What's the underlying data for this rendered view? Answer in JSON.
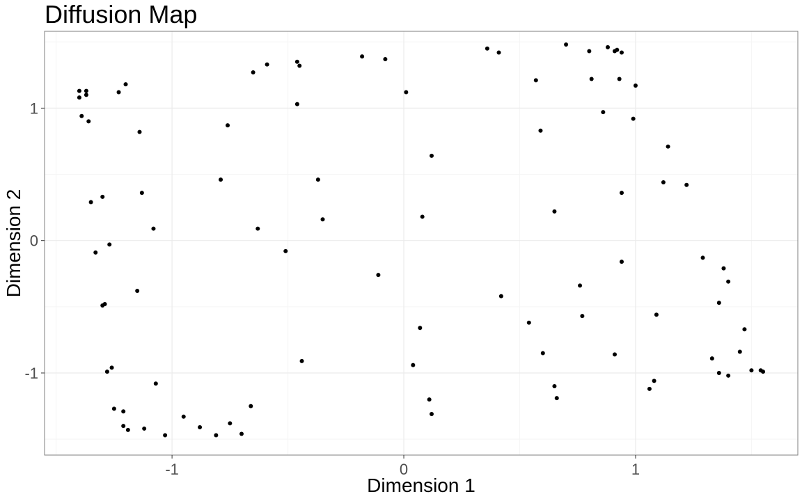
{
  "chart_data": {
    "type": "scatter",
    "title": "Diffusion Map",
    "xlabel": "Dimension 1",
    "ylabel": "Dimension 2",
    "xlim": [
      -1.55,
      1.7
    ],
    "ylim": [
      -1.62,
      1.58
    ],
    "xticks": [
      -1,
      0,
      1
    ],
    "yticks": [
      -1,
      0,
      1
    ],
    "xtick_labels": [
      "-1",
      "0",
      "1"
    ],
    "ytick_labels": [
      "-1",
      "0",
      "1"
    ],
    "grid": true,
    "colors": {
      "point": "#000000",
      "grid_major": "#ebebeb",
      "grid_minor": "#f5f5f5",
      "panel_border": "#7f7f7f"
    },
    "points": [
      {
        "x": -1.4,
        "y": 1.13
      },
      {
        "x": -1.37,
        "y": 1.13
      },
      {
        "x": -1.4,
        "y": 1.08
      },
      {
        "x": -1.37,
        "y": 1.1
      },
      {
        "x": -1.39,
        "y": 0.94
      },
      {
        "x": -1.36,
        "y": 0.9
      },
      {
        "x": -1.2,
        "y": 1.18
      },
      {
        "x": -1.23,
        "y": 1.12
      },
      {
        "x": -1.14,
        "y": 0.82
      },
      {
        "x": -1.35,
        "y": 0.29
      },
      {
        "x": -1.3,
        "y": 0.33
      },
      {
        "x": -1.13,
        "y": 0.36
      },
      {
        "x": -1.08,
        "y": 0.09
      },
      {
        "x": -1.27,
        "y": -0.03
      },
      {
        "x": -1.33,
        "y": -0.09
      },
      {
        "x": -1.15,
        "y": -0.38
      },
      {
        "x": -1.3,
        "y": -0.49
      },
      {
        "x": -1.29,
        "y": -0.48
      },
      {
        "x": -1.26,
        "y": -0.96
      },
      {
        "x": -1.28,
        "y": -0.99
      },
      {
        "x": -1.07,
        "y": -1.08
      },
      {
        "x": -1.25,
        "y": -1.27
      },
      {
        "x": -1.21,
        "y": -1.29
      },
      {
        "x": -1.21,
        "y": -1.4
      },
      {
        "x": -1.19,
        "y": -1.43
      },
      {
        "x": -1.12,
        "y": -1.42
      },
      {
        "x": -1.03,
        "y": -1.47
      },
      {
        "x": -0.95,
        "y": -1.33
      },
      {
        "x": -0.88,
        "y": -1.41
      },
      {
        "x": -0.81,
        "y": -1.47
      },
      {
        "x": -0.75,
        "y": -1.38
      },
      {
        "x": -0.7,
        "y": -1.46
      },
      {
        "x": -0.66,
        "y": -1.25
      },
      {
        "x": -0.65,
        "y": 1.27
      },
      {
        "x": -0.59,
        "y": 1.33
      },
      {
        "x": -0.76,
        "y": 0.87
      },
      {
        "x": -0.79,
        "y": 0.46
      },
      {
        "x": -0.63,
        "y": 0.09
      },
      {
        "x": -0.51,
        "y": -0.08
      },
      {
        "x": -0.46,
        "y": 1.35
      },
      {
        "x": -0.45,
        "y": 1.32
      },
      {
        "x": -0.46,
        "y": 1.03
      },
      {
        "x": -0.37,
        "y": 0.46
      },
      {
        "x": -0.35,
        "y": 0.16
      },
      {
        "x": -0.44,
        "y": -0.91
      },
      {
        "x": -0.18,
        "y": 1.39
      },
      {
        "x": -0.08,
        "y": 1.37
      },
      {
        "x": -0.11,
        "y": -0.26
      },
      {
        "x": 0.01,
        "y": 1.12
      },
      {
        "x": 0.12,
        "y": 0.64
      },
      {
        "x": 0.08,
        "y": 0.18
      },
      {
        "x": 0.07,
        "y": -0.66
      },
      {
        "x": 0.04,
        "y": -0.94
      },
      {
        "x": 0.11,
        "y": -1.2
      },
      {
        "x": 0.12,
        "y": -1.31
      },
      {
        "x": 0.36,
        "y": 1.45
      },
      {
        "x": 0.41,
        "y": 1.42
      },
      {
        "x": 0.42,
        "y": -0.42
      },
      {
        "x": 0.54,
        "y": -0.62
      },
      {
        "x": 0.57,
        "y": 1.21
      },
      {
        "x": 0.59,
        "y": 0.83
      },
      {
        "x": 0.6,
        "y": -0.85
      },
      {
        "x": 0.65,
        "y": 0.22
      },
      {
        "x": 0.65,
        "y": -1.1
      },
      {
        "x": 0.66,
        "y": -1.19
      },
      {
        "x": 0.7,
        "y": 1.48
      },
      {
        "x": 0.76,
        "y": -0.34
      },
      {
        "x": 0.77,
        "y": -0.57
      },
      {
        "x": 0.8,
        "y": 1.43
      },
      {
        "x": 0.81,
        "y": 1.22
      },
      {
        "x": 0.86,
        "y": 0.97
      },
      {
        "x": 0.88,
        "y": 1.46
      },
      {
        "x": 0.91,
        "y": 1.43
      },
      {
        "x": 0.92,
        "y": 1.44
      },
      {
        "x": 0.93,
        "y": 1.22
      },
      {
        "x": 0.94,
        "y": 1.42
      },
      {
        "x": 0.94,
        "y": 0.36
      },
      {
        "x": 0.94,
        "y": -0.16
      },
      {
        "x": 0.91,
        "y": -0.86
      },
      {
        "x": 1.0,
        "y": 1.17
      },
      {
        "x": 0.99,
        "y": 0.92
      },
      {
        "x": 1.06,
        "y": -1.12
      },
      {
        "x": 1.08,
        "y": -1.06
      },
      {
        "x": 1.09,
        "y": -0.56
      },
      {
        "x": 1.12,
        "y": 0.44
      },
      {
        "x": 1.14,
        "y": 0.71
      },
      {
        "x": 1.22,
        "y": 0.42
      },
      {
        "x": 1.29,
        "y": -0.13
      },
      {
        "x": 1.33,
        "y": -0.89
      },
      {
        "x": 1.36,
        "y": -0.47
      },
      {
        "x": 1.36,
        "y": -1.0
      },
      {
        "x": 1.38,
        "y": -0.21
      },
      {
        "x": 1.4,
        "y": -0.31
      },
      {
        "x": 1.4,
        "y": -1.02
      },
      {
        "x": 1.45,
        "y": -0.84
      },
      {
        "x": 1.47,
        "y": -0.67
      },
      {
        "x": 1.5,
        "y": -0.98
      },
      {
        "x": 1.54,
        "y": -0.98
      },
      {
        "x": 1.55,
        "y": -0.99
      }
    ]
  }
}
